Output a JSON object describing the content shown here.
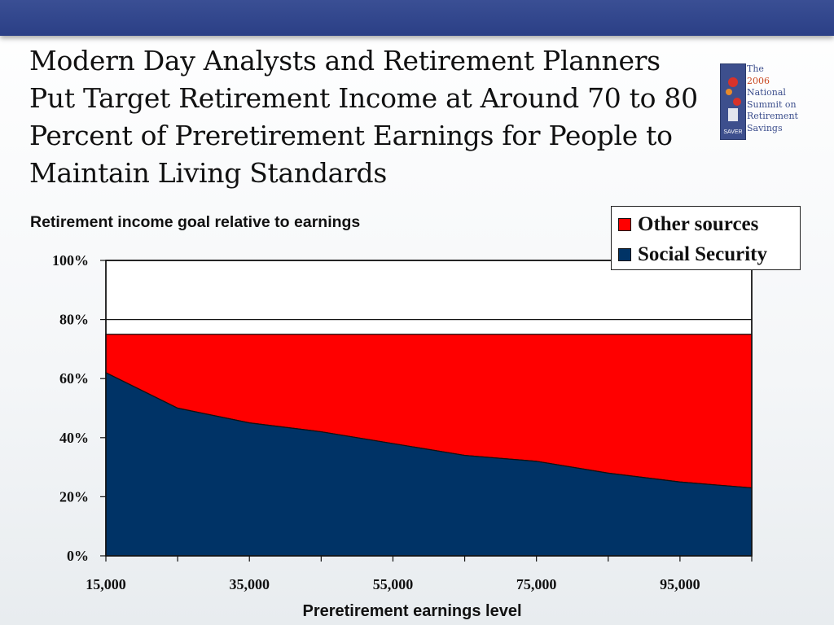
{
  "slide": {
    "title": "Modern Day Analysts and Retirement Planners Put Target Retirement Income at Around 70 to 80 Percent of Preretirement Earnings for People to Maintain Living Standards"
  },
  "logo": {
    "lines": [
      "The",
      "2006",
      "National",
      "Summit on",
      "Retirement",
      "Savings"
    ],
    "accent_lines": [
      "2006"
    ],
    "emblem_text": "SAVER"
  },
  "chart_data": {
    "type": "area",
    "title": "Retirement income goal relative to earnings",
    "xlabel": "Preretirement earnings level",
    "ylabel": "",
    "x": [
      15000,
      25000,
      35000,
      45000,
      55000,
      65000,
      75000,
      85000,
      95000,
      105000
    ],
    "x_tick_labels": [
      "15,000",
      "35,000",
      "55,000",
      "75,000",
      "95,000"
    ],
    "x_tick_values": [
      15000,
      35000,
      55000,
      75000,
      95000
    ],
    "xlim": [
      15000,
      105000
    ],
    "ylim": [
      0,
      100
    ],
    "y_ticks": [
      0,
      20,
      40,
      60,
      80,
      100
    ],
    "y_tick_labels": [
      "0%",
      "20%",
      "40%",
      "60%",
      "80%",
      "100%"
    ],
    "stacked": true,
    "series": [
      {
        "name": "Social Security",
        "color": "#003366",
        "values": [
          62,
          50,
          45,
          42,
          38,
          34,
          32,
          28,
          25,
          23
        ]
      },
      {
        "name": "Other sources",
        "color": "#ff0000",
        "values": [
          13,
          25,
          30,
          33,
          37,
          41,
          43,
          47,
          50,
          52
        ]
      }
    ],
    "total": [
      75,
      75,
      75,
      75,
      75,
      75,
      75,
      75,
      75,
      75
    ],
    "grid": "horizontal",
    "legend_position": "top-right"
  }
}
